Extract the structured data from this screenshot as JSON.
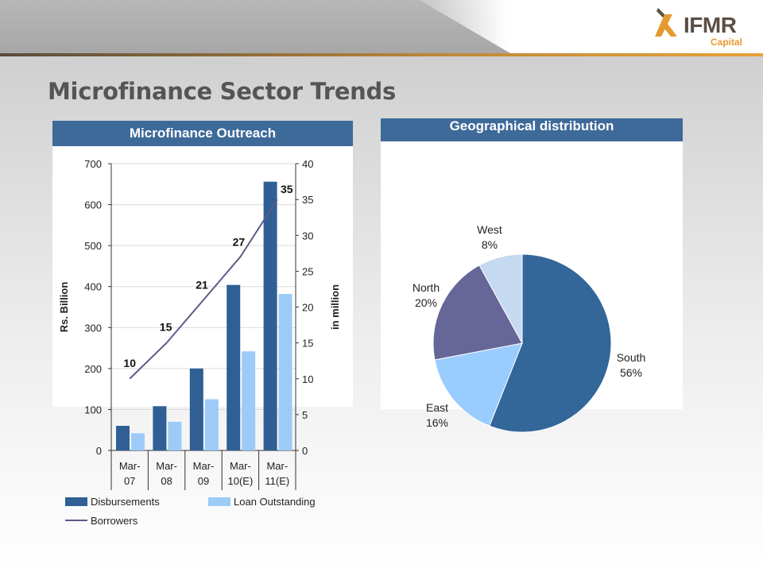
{
  "logo": {
    "name": "IFMR",
    "sub": "Capital"
  },
  "page_title": "Microfinance Sector Trends",
  "colors": {
    "header": "#3e6a9a",
    "disbursements": "#2f5f94",
    "loan_outstanding": "#9ccbf7",
    "borrowers": "#5d5a8a",
    "south": "#336699",
    "east": "#99ccff",
    "north": "#666699",
    "west": "#c5d9f1"
  },
  "chart_data": [
    {
      "type": "bar",
      "title": "Microfinance Outreach",
      "categories": [
        [
          "Mar-",
          "07"
        ],
        [
          "Mar-",
          "08"
        ],
        [
          "Mar-",
          "09"
        ],
        [
          "Mar-",
          "10(E)"
        ],
        [
          "Mar-",
          "11(E)"
        ]
      ],
      "ylabel": "Rs. Billion",
      "ylim": [
        0,
        700
      ],
      "yticks": [
        0,
        100,
        200,
        300,
        400,
        500,
        600,
        700
      ],
      "y2label": "in million",
      "y2lim": [
        0,
        40
      ],
      "y2ticks": [
        0,
        5,
        10,
        15,
        20,
        25,
        30,
        35,
        40
      ],
      "series": [
        {
          "name": "Disbursements",
          "type": "bar",
          "axis": "left",
          "values": [
            60,
            108,
            200,
            404,
            656
          ]
        },
        {
          "name": "Loan Outstanding",
          "type": "bar",
          "axis": "left",
          "values": [
            42,
            70,
            125,
            242,
            382
          ]
        },
        {
          "name": "Borrowers",
          "type": "line",
          "axis": "right",
          "values": [
            10,
            15,
            21,
            27,
            35
          ],
          "labels": [
            "10",
            "15",
            "21",
            "27",
            "35"
          ]
        }
      ],
      "grid": true,
      "legend": "bottom"
    },
    {
      "type": "pie",
      "title": "Geographical distribution",
      "slices": [
        {
          "name": "South",
          "value": 56,
          "label": "56%"
        },
        {
          "name": "East",
          "value": 16,
          "label": "16%"
        },
        {
          "name": "North",
          "value": 20,
          "label": "20%"
        },
        {
          "name": "West",
          "value": 8,
          "label": "8%"
        }
      ]
    }
  ]
}
